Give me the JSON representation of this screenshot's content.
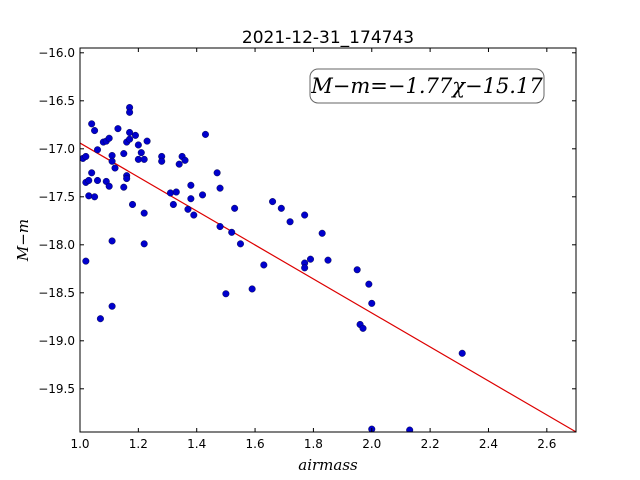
{
  "chart_data": {
    "type": "scatter",
    "title": "2021-12-31_174743",
    "xlabel": "airmass",
    "ylabel": "M−m",
    "xlim": [
      1.0,
      2.7
    ],
    "ylim": [
      -19.95,
      -15.95
    ],
    "y_inverted": true,
    "xticks": [
      "1.0",
      "1.2",
      "1.4",
      "1.6",
      "1.8",
      "2.0",
      "2.2",
      "2.4",
      "2.6"
    ],
    "yticks": [
      "−16.0",
      "−16.5",
      "−17.0",
      "−17.5",
      "−18.0",
      "−18.5",
      "−19.0",
      "−19.5"
    ],
    "annotation": "M−m=−1.77χ−15.17",
    "fit": {
      "slope": -1.77,
      "intercept": -15.17,
      "color": "#dd0000"
    },
    "marker_color": "#0000cc",
    "grid": false,
    "points": [
      {
        "x": 1.01,
        "y": -17.1
      },
      {
        "x": 1.02,
        "y": -17.08
      },
      {
        "x": 1.02,
        "y": -17.35
      },
      {
        "x": 1.03,
        "y": -17.33
      },
      {
        "x": 1.03,
        "y": -17.49
      },
      {
        "x": 1.02,
        "y": -18.17
      },
      {
        "x": 1.04,
        "y": -16.74
      },
      {
        "x": 1.05,
        "y": -16.81
      },
      {
        "x": 1.04,
        "y": -17.25
      },
      {
        "x": 1.05,
        "y": -17.5
      },
      {
        "x": 1.06,
        "y": -17.33
      },
      {
        "x": 1.06,
        "y": -17.01
      },
      {
        "x": 1.07,
        "y": -18.77
      },
      {
        "x": 1.08,
        "y": -16.93
      },
      {
        "x": 1.09,
        "y": -16.92
      },
      {
        "x": 1.09,
        "y": -17.34
      },
      {
        "x": 1.1,
        "y": -17.39
      },
      {
        "x": 1.1,
        "y": -16.89
      },
      {
        "x": 1.11,
        "y": -17.07
      },
      {
        "x": 1.11,
        "y": -17.13
      },
      {
        "x": 1.11,
        "y": -18.64
      },
      {
        "x": 1.11,
        "y": -17.96
      },
      {
        "x": 1.12,
        "y": -17.2
      },
      {
        "x": 1.13,
        "y": -16.79
      },
      {
        "x": 1.15,
        "y": -17.05
      },
      {
        "x": 1.15,
        "y": -17.4
      },
      {
        "x": 1.16,
        "y": -17.28
      },
      {
        "x": 1.16,
        "y": -16.93
      },
      {
        "x": 1.16,
        "y": -17.31
      },
      {
        "x": 1.17,
        "y": -16.9
      },
      {
        "x": 1.17,
        "y": -16.57
      },
      {
        "x": 1.17,
        "y": -16.62
      },
      {
        "x": 1.17,
        "y": -16.83
      },
      {
        "x": 1.18,
        "y": -17.58
      },
      {
        "x": 1.19,
        "y": -16.86
      },
      {
        "x": 1.2,
        "y": -17.11
      },
      {
        "x": 1.2,
        "y": -16.96
      },
      {
        "x": 1.21,
        "y": -17.04
      },
      {
        "x": 1.22,
        "y": -17.11
      },
      {
        "x": 1.22,
        "y": -17.67
      },
      {
        "x": 1.22,
        "y": -17.99
      },
      {
        "x": 1.23,
        "y": -16.92
      },
      {
        "x": 1.28,
        "y": -17.08
      },
      {
        "x": 1.28,
        "y": -17.13
      },
      {
        "x": 1.31,
        "y": -17.46
      },
      {
        "x": 1.32,
        "y": -17.58
      },
      {
        "x": 1.33,
        "y": -17.45
      },
      {
        "x": 1.34,
        "y": -17.16
      },
      {
        "x": 1.35,
        "y": -17.08
      },
      {
        "x": 1.36,
        "y": -17.12
      },
      {
        "x": 1.37,
        "y": -17.63
      },
      {
        "x": 1.38,
        "y": -17.38
      },
      {
        "x": 1.38,
        "y": -17.52
      },
      {
        "x": 1.39,
        "y": -17.69
      },
      {
        "x": 1.42,
        "y": -17.48
      },
      {
        "x": 1.43,
        "y": -16.85
      },
      {
        "x": 1.47,
        "y": -17.25
      },
      {
        "x": 1.48,
        "y": -17.41
      },
      {
        "x": 1.48,
        "y": -17.81
      },
      {
        "x": 1.5,
        "y": -18.51
      },
      {
        "x": 1.52,
        "y": -17.87
      },
      {
        "x": 1.53,
        "y": -17.62
      },
      {
        "x": 1.55,
        "y": -17.99
      },
      {
        "x": 1.59,
        "y": -18.46
      },
      {
        "x": 1.63,
        "y": -18.21
      },
      {
        "x": 1.66,
        "y": -17.55
      },
      {
        "x": 1.69,
        "y": -17.62
      },
      {
        "x": 1.72,
        "y": -17.76
      },
      {
        "x": 1.77,
        "y": -17.69
      },
      {
        "x": 1.77,
        "y": -18.19
      },
      {
        "x": 1.77,
        "y": -18.24
      },
      {
        "x": 1.79,
        "y": -18.15
      },
      {
        "x": 1.83,
        "y": -17.88
      },
      {
        "x": 1.85,
        "y": -18.16
      },
      {
        "x": 1.95,
        "y": -18.26
      },
      {
        "x": 1.96,
        "y": -18.83
      },
      {
        "x": 1.97,
        "y": -18.87
      },
      {
        "x": 1.99,
        "y": -18.41
      },
      {
        "x": 2.0,
        "y": -18.61
      },
      {
        "x": 2.0,
        "y": -19.92
      },
      {
        "x": 2.13,
        "y": -19.93
      },
      {
        "x": 2.31,
        "y": -19.13
      }
    ]
  }
}
